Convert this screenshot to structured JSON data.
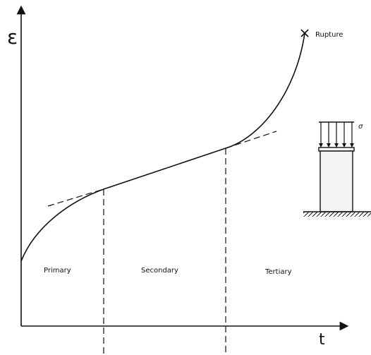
{
  "axis_labels": {
    "y": "ε",
    "x": "t"
  },
  "annotations": {
    "rupture": "Rupture",
    "stress": "σ"
  },
  "regions": [
    "Primary",
    "Secondary",
    "Tertiary"
  ]
}
